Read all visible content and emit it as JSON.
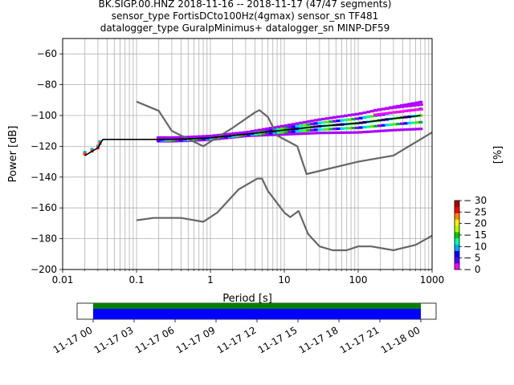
{
  "title_lines": [
    "BK.SIGP.00.HNZ   2018-11-16 -- 2018-11-17  (47/47 segments)",
    "sensor_type FortisDCto100Hz(4gmax) sensor_sn TF481",
    "datalogger_type GuralpMinimus+ datalogger_sn MINP-DF59"
  ],
  "chart_data": {
    "type": "line",
    "xlabel": "Period [s]",
    "ylabel": "Power [dB]",
    "xscale": "log",
    "xlim": [
      0.01,
      1000
    ],
    "ylim": [
      -200,
      -50
    ],
    "xticks": [
      0.01,
      0.1,
      1,
      10,
      100,
      1000
    ],
    "xtick_labels": [
      "0.01",
      "0.1",
      "1",
      "10",
      "100",
      "1000"
    ],
    "yticks": [
      -200,
      -180,
      -160,
      -140,
      -120,
      -100,
      -80,
      -60
    ],
    "ytick_labels": [
      "−200",
      "−180",
      "−160",
      "−140",
      "−120",
      "−100",
      "−80",
      "−60"
    ],
    "grid": true,
    "series": [
      {
        "color": "#666666",
        "points": [
          [
            0.1,
            -91
          ],
          [
            0.2,
            -97
          ],
          [
            0.3,
            -110
          ],
          [
            0.8,
            -120
          ],
          [
            1.0,
            -117
          ],
          [
            2.0,
            -108
          ],
          [
            4.0,
            -98
          ],
          [
            4.6,
            -96.5
          ],
          [
            6.0,
            -101
          ],
          [
            8.0,
            -113
          ],
          [
            15.0,
            -120
          ],
          [
            20.0,
            -138
          ],
          [
            100.0,
            -130
          ],
          [
            300.0,
            -126
          ],
          [
            1000.0,
            -111
          ]
        ]
      },
      {
        "color": "#666666",
        "points": [
          [
            0.1,
            -168
          ],
          [
            0.17,
            -166.5
          ],
          [
            0.4,
            -166.5
          ],
          [
            0.8,
            -169
          ],
          [
            1.24,
            -163
          ],
          [
            2.4,
            -148
          ],
          [
            4.3,
            -141
          ],
          [
            5.0,
            -141
          ],
          [
            6.0,
            -149
          ],
          [
            10.0,
            -163
          ],
          [
            12.0,
            -166
          ],
          [
            15.6,
            -162
          ],
          [
            21.0,
            -177
          ],
          [
            30.0,
            -185
          ],
          [
            45.0,
            -187.5
          ],
          [
            70.0,
            -187.5
          ],
          [
            100.0,
            -185
          ],
          [
            150.0,
            -185
          ],
          [
            300.0,
            -187.5
          ],
          [
            600.0,
            -184
          ],
          [
            1000.0,
            -178
          ]
        ]
      },
      {
        "color": "#000000",
        "points": [
          [
            0.02,
            -126
          ],
          [
            0.03,
            -121
          ],
          [
            0.035,
            -115.5
          ],
          [
            0.1,
            -115.5
          ],
          [
            0.3,
            -115.5
          ],
          [
            0.5,
            -115.2
          ],
          [
            1.0,
            -114.5
          ],
          [
            2.0,
            -113
          ],
          [
            5.0,
            -111
          ],
          [
            10.0,
            -109.5
          ],
          [
            30.0,
            -107
          ],
          [
            100.0,
            -105
          ],
          [
            300.0,
            -102
          ],
          [
            700.0,
            -100
          ]
        ]
      }
    ],
    "colorbar": {
      "label": "[%]",
      "ticks": [
        0,
        5,
        10,
        15,
        20,
        25,
        30
      ],
      "range": [
        0,
        30
      ],
      "colors": [
        "#ff00ff",
        "#5500ff",
        "#0000ff",
        "#00aaff",
        "#00ffaa",
        "#00cc00",
        "#aaff00",
        "#ffee00",
        "#ff8800",
        "#ff0000",
        "#aa0000"
      ]
    },
    "time_axis": {
      "tick_labels": [
        "11-17 00",
        "11-17 03",
        "11-17 06",
        "11-17 09",
        "11-17 12",
        "11-17 15",
        "11-17 18",
        "11-17 21",
        "11-18 00"
      ],
      "coverage_colors": [
        "#008000",
        "#0000ff"
      ]
    }
  }
}
